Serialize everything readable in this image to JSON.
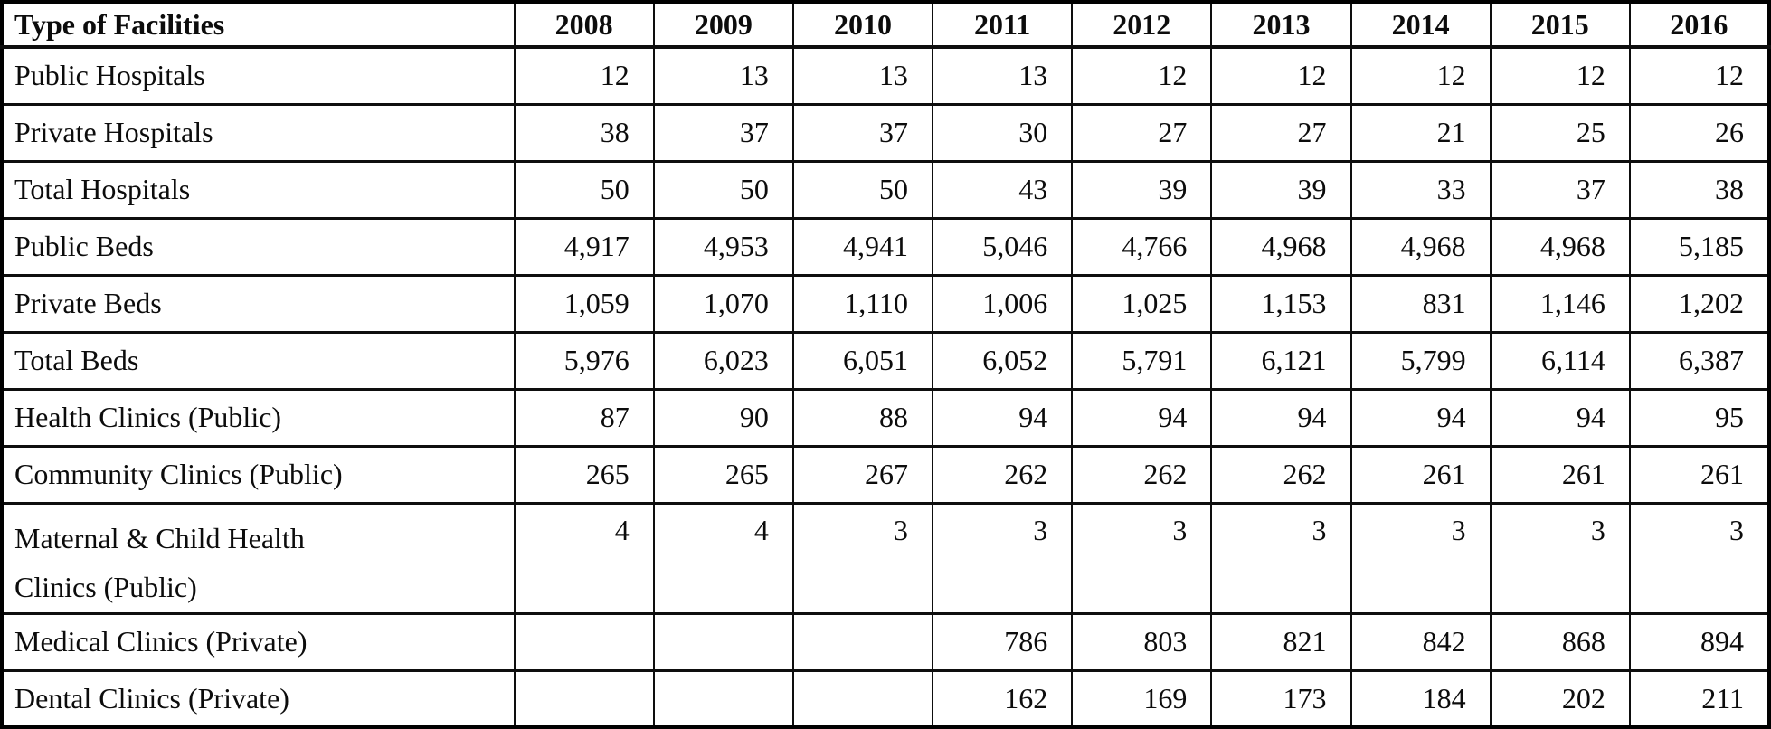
{
  "chart_data": {
    "type": "table",
    "columns": [
      "Type of Facilities",
      "2008",
      "2009",
      "2010",
      "2011",
      "2012",
      "2013",
      "2014",
      "2015",
      "2016"
    ],
    "rows": [
      {
        "label": "Public Hospitals",
        "values": [
          "12",
          "13",
          "13",
          "13",
          "12",
          "12",
          "12",
          "12",
          "12"
        ]
      },
      {
        "label": "Private Hospitals",
        "values": [
          "38",
          "37",
          "37",
          "30",
          "27",
          "27",
          "21",
          "25",
          "26"
        ]
      },
      {
        "label": "Total Hospitals",
        "values": [
          "50",
          "50",
          "50",
          "43",
          "39",
          "39",
          "33",
          "37",
          "38"
        ]
      },
      {
        "label": "Public Beds",
        "values": [
          "4,917",
          "4,953",
          "4,941",
          "5,046",
          "4,766",
          "4,968",
          "4,968",
          "4,968",
          "5,185"
        ]
      },
      {
        "label": "Private Beds",
        "values": [
          "1,059",
          "1,070",
          "1,110",
          "1,006",
          "1,025",
          "1,153",
          "831",
          "1,146",
          "1,202"
        ]
      },
      {
        "label": "Total Beds",
        "values": [
          "5,976",
          "6,023",
          "6,051",
          "6,052",
          "5,791",
          "6,121",
          "5,799",
          "6,114",
          "6,387"
        ]
      },
      {
        "label": "Health Clinics (Public)",
        "values": [
          "87",
          "90",
          "88",
          "94",
          "94",
          "94",
          "94",
          "94",
          "95"
        ]
      },
      {
        "label": "Community Clinics (Public)",
        "values": [
          "265",
          "265",
          "267",
          "262",
          "262",
          "262",
          "261",
          "261",
          "261"
        ]
      },
      {
        "label": "Maternal & Child Health Clinics (Public)",
        "values": [
          "4",
          "4",
          "3",
          "3",
          "3",
          "3",
          "3",
          "3",
          "3"
        ],
        "tall": true
      },
      {
        "label": "Medical Clinics (Private)",
        "values": [
          "",
          "",
          "",
          "786",
          "803",
          "821",
          "842",
          "868",
          "894"
        ]
      },
      {
        "label": "Dental Clinics (Private)",
        "values": [
          "",
          "",
          "",
          "162",
          "169",
          "173",
          "184",
          "202",
          "211"
        ]
      }
    ],
    "layout": {
      "grid": "on",
      "header_style": "bold",
      "label_align": "left",
      "value_align": "right",
      "border_color": "#000000",
      "text_color": "#0c0c0c",
      "background_color": "#ffffff"
    }
  }
}
